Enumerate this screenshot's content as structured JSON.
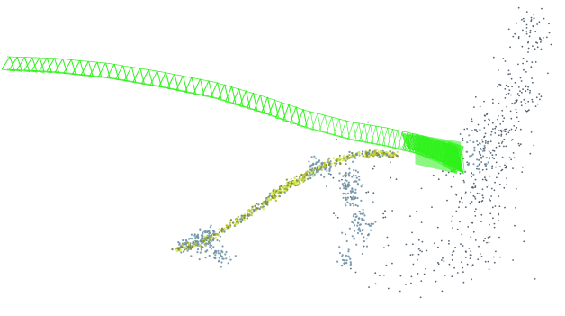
{
  "scene": {
    "background_color": "#ffffff",
    "camera_frustum_color": "#2ef21a",
    "point_colors": {
      "far_cloud": "#3c4a5c",
      "structure_blue": "#6f93a6",
      "dense_yellow": "#bcc23a",
      "dense_olive": "#7f8f2f",
      "dense_lime": "#d7ee52"
    },
    "elements": [
      "camera-trajectory",
      "sparse-point-cloud",
      "dense-point-cloud"
    ]
  }
}
